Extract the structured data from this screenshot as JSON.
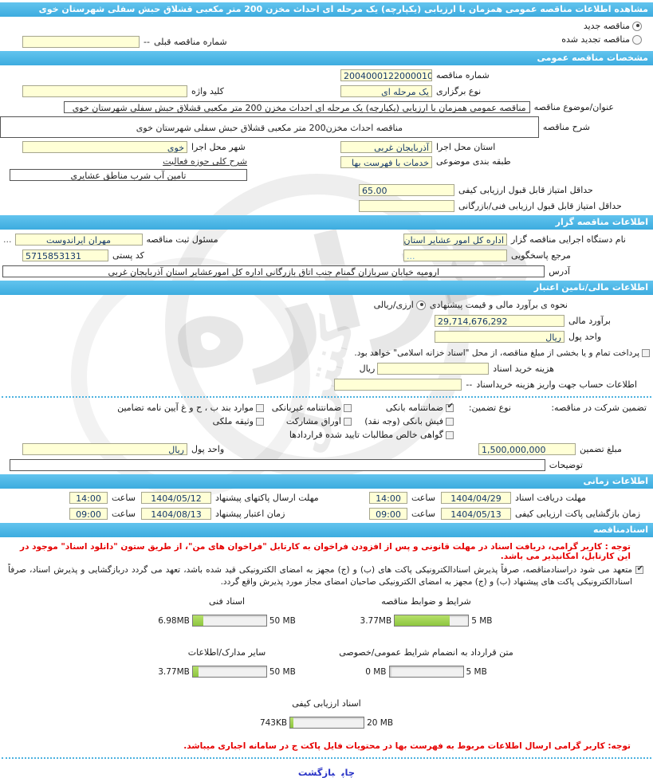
{
  "title": "مشاهده اطلاعات مناقصه عمومی همزمان با ارزیابی (یکپارچه) یک مرحله ای احداث مخزن 200 متر مکعبی قشلاق حبش سفلی شهرستان خوی",
  "colors": {
    "section_header": "#3dacdf",
    "field_bg": "#ffffd6",
    "bar_fill": "#8dc63f",
    "note_red": "#e60000",
    "link_blue": "#2b35c7"
  },
  "renewal": {
    "new_label": "مناقصه جدید",
    "new_selected": true,
    "renewed_label": "مناقصه تجدید شده",
    "renewed_selected": false,
    "prev_number_label": "شماره مناقصه قبلی",
    "prev_number_value": "--",
    "prev_number_field": ""
  },
  "sections": {
    "general": "مشخصات مناقصه عمومی",
    "organizer": "اطلاعات مناقصه گزار",
    "financial": "اطلاعات مالی/تامین اعتبار",
    "time": "اطلاعات زمانی",
    "documents": "اسنادمناقصه"
  },
  "general": {
    "tender_no_label": "شماره مناقصه",
    "tender_no": "2004000122000010",
    "type_label": "نوع برگزاری",
    "type": "یک مرحله ای",
    "keyword_label": "کلید واژه",
    "keyword": "",
    "subject_label": "عنوان/موضوع مناقصه",
    "subject": "مناقصه عمومی همزمان با ارزیابی (یکپارچه) یک مرحله ای احداث مخزن 200 متر مکعبی قشلاق حبش سفلی شهرستان خوی",
    "desc_label": "شرح مناقصه",
    "desc": "مناقصه احداث مخزن200 متر مکعبی قشلاق حبش سفلی شهرستان خوی",
    "province_label": "استان محل اجرا",
    "province": "آذربایجان غربی",
    "city_label": "شهر محل اجرا",
    "city": "خوی",
    "category_label": "طبقه بندی موضوعی",
    "category": "خدمات با فهرست بها",
    "activity_label": "شرح کلی حوزه فعالیت",
    "activity": "تامین آب شرب مناطق عشایری",
    "min_quality_label": "حداقل امتیاز قابل قبول ارزیابی کیفی",
    "min_quality": "65.00",
    "min_tech_label": "حداقل امتیاز قابل قبول ارزیابی فنی/بازرگانی",
    "min_tech": ""
  },
  "organizer": {
    "agency_label": "نام دستگاه اجرایی مناقصه گزار",
    "agency": "اداره کل امور عشایر استان",
    "registrar_label": "مسئول ثبت مناقصه",
    "registrar": "مهران ایراندوست",
    "registrar_more": "...",
    "contact_label": "مرجع پاسخگویی",
    "contact": "...",
    "postal_label": "کد پستی",
    "postal": "5715853131",
    "address_label": "آدرس",
    "address": "ارومیه خیابان سربازان گمنام جنب اتاق بازرگانی اداره کل امورعشایر استان آذربایجان غربی"
  },
  "financial": {
    "method_label": "نحوه ی برآورد مالی و قیمت پیشنهادی",
    "method_option": "ارزی/ریالی",
    "method_selected": true,
    "estimate_label": "برآورد مالی",
    "estimate": "29,714,676,292",
    "currency_label": "واحد پول",
    "currency": "ریال",
    "treasury_note": "پرداخت تمام و یا بخشی از مبلغ مناقصه، از محل \"اسناد خزانه اسلامی\" خواهد بود.",
    "treasury_checked": false,
    "doc_fee_label": "هزینه خرید اسناد",
    "doc_fee": "",
    "doc_fee_unit": "ریال",
    "account_label": "اطلاعات حساب جهت واریز هزینه خریداسناد",
    "account_value": "--",
    "account_field": ""
  },
  "guarantee": {
    "row_label": "تضمین شرکت در مناقصه:",
    "type_label": "نوع تضمین:",
    "options": [
      {
        "label": "ضمانتنامه بانکی",
        "checked": true
      },
      {
        "label": "ضمانتنامه غیربانکی",
        "checked": false
      },
      {
        "label": "موارد بند ب ، ح و غ آیین نامه تضامین",
        "checked": false
      },
      {
        "label": "فیش بانکی (وجه نقد)",
        "checked": false
      },
      {
        "label": "اوراق مشارکت",
        "checked": false
      },
      {
        "label": "وثیقه ملکی",
        "checked": false
      },
      {
        "label": "گواهی خالص مطالبات تایید شده قراردادها",
        "checked": false
      }
    ],
    "amount_label": "مبلغ تضمین",
    "amount": "1,500,000,000",
    "currency_label": "واحد پول",
    "currency": "ریال",
    "notes_label": "توضیحات",
    "notes": ""
  },
  "schedule": {
    "hour_label": "ساعت",
    "rows": [
      {
        "label_r": "مهلت دریافت اسناد",
        "date_r": "1404/04/29",
        "time_r": "14:00",
        "label_l": "مهلت ارسال پاکتهای پیشنهاد",
        "date_l": "1404/05/12",
        "time_l": "14:00"
      },
      {
        "label_r": "زمان بازگشایی پاکت ارزیابی کیفی",
        "date_r": "1404/05/13",
        "time_r": "09:00",
        "label_l": "زمان اعتبار پیشنهاد",
        "date_l": "1404/08/13",
        "time_l": "09:00"
      }
    ]
  },
  "documents": {
    "note_red": "توجه : کاربر گرامی، دریافت اسناد در مهلت قانونی و پس از افزودن فراخوان به کارتابل \"فراخوان های من\"، از طریق ستون \"دانلود اسناد\" موجود در این کارتابل، امکانپذیر می باشد.",
    "commitment_checked": true,
    "commitment": "متعهد می شود دراسنادمناقصه، صرفاً پذیرش اسنادالکترونیکی پاکت های (ب) و (ج) مجهز به امضای الکترونیکی قید شده باشد، تعهد می گردد دربازگشایی و پذیرش اسناد، صرفاً اسنادالکترونیکی پاکت های پیشنهاد (ب) و (ج) مجهز به امضای الکترونیکی صاحبان امضای مجاز مورد پذیرش واقع گردد.",
    "uploads": [
      {
        "label": "شرایط و ضوابط مناقصه",
        "size": "3.77MB",
        "capacity": "5 MB",
        "pct": 75
      },
      {
        "label": "اسناد فنی",
        "size": "6.98MB",
        "capacity": "50 MB",
        "pct": 14
      },
      {
        "label": "متن قرارداد به انضمام شرایط عمومی/خصوصی",
        "size": "0 MB",
        "capacity": "5 MB",
        "pct": 0
      },
      {
        "label": "سایر مدارک/اطلاعات",
        "size": "3.77MB",
        "capacity": "50 MB",
        "pct": 8
      },
      {
        "label": "اسناد ارزیابی کیفی",
        "size": "743KB",
        "capacity": "20 MB",
        "pct": 4
      }
    ],
    "note_red2": "توجه: کاربر گرامی ارسال اطلاعات مربوط به فهرست بها در محتویات فایل پاکت ج در سامانه اجباری میباشد."
  },
  "footer": {
    "print": "چاپ",
    "back": "بازگشت"
  },
  "watermark": {
    "word": "هزاره",
    "word2": "کنترل"
  }
}
